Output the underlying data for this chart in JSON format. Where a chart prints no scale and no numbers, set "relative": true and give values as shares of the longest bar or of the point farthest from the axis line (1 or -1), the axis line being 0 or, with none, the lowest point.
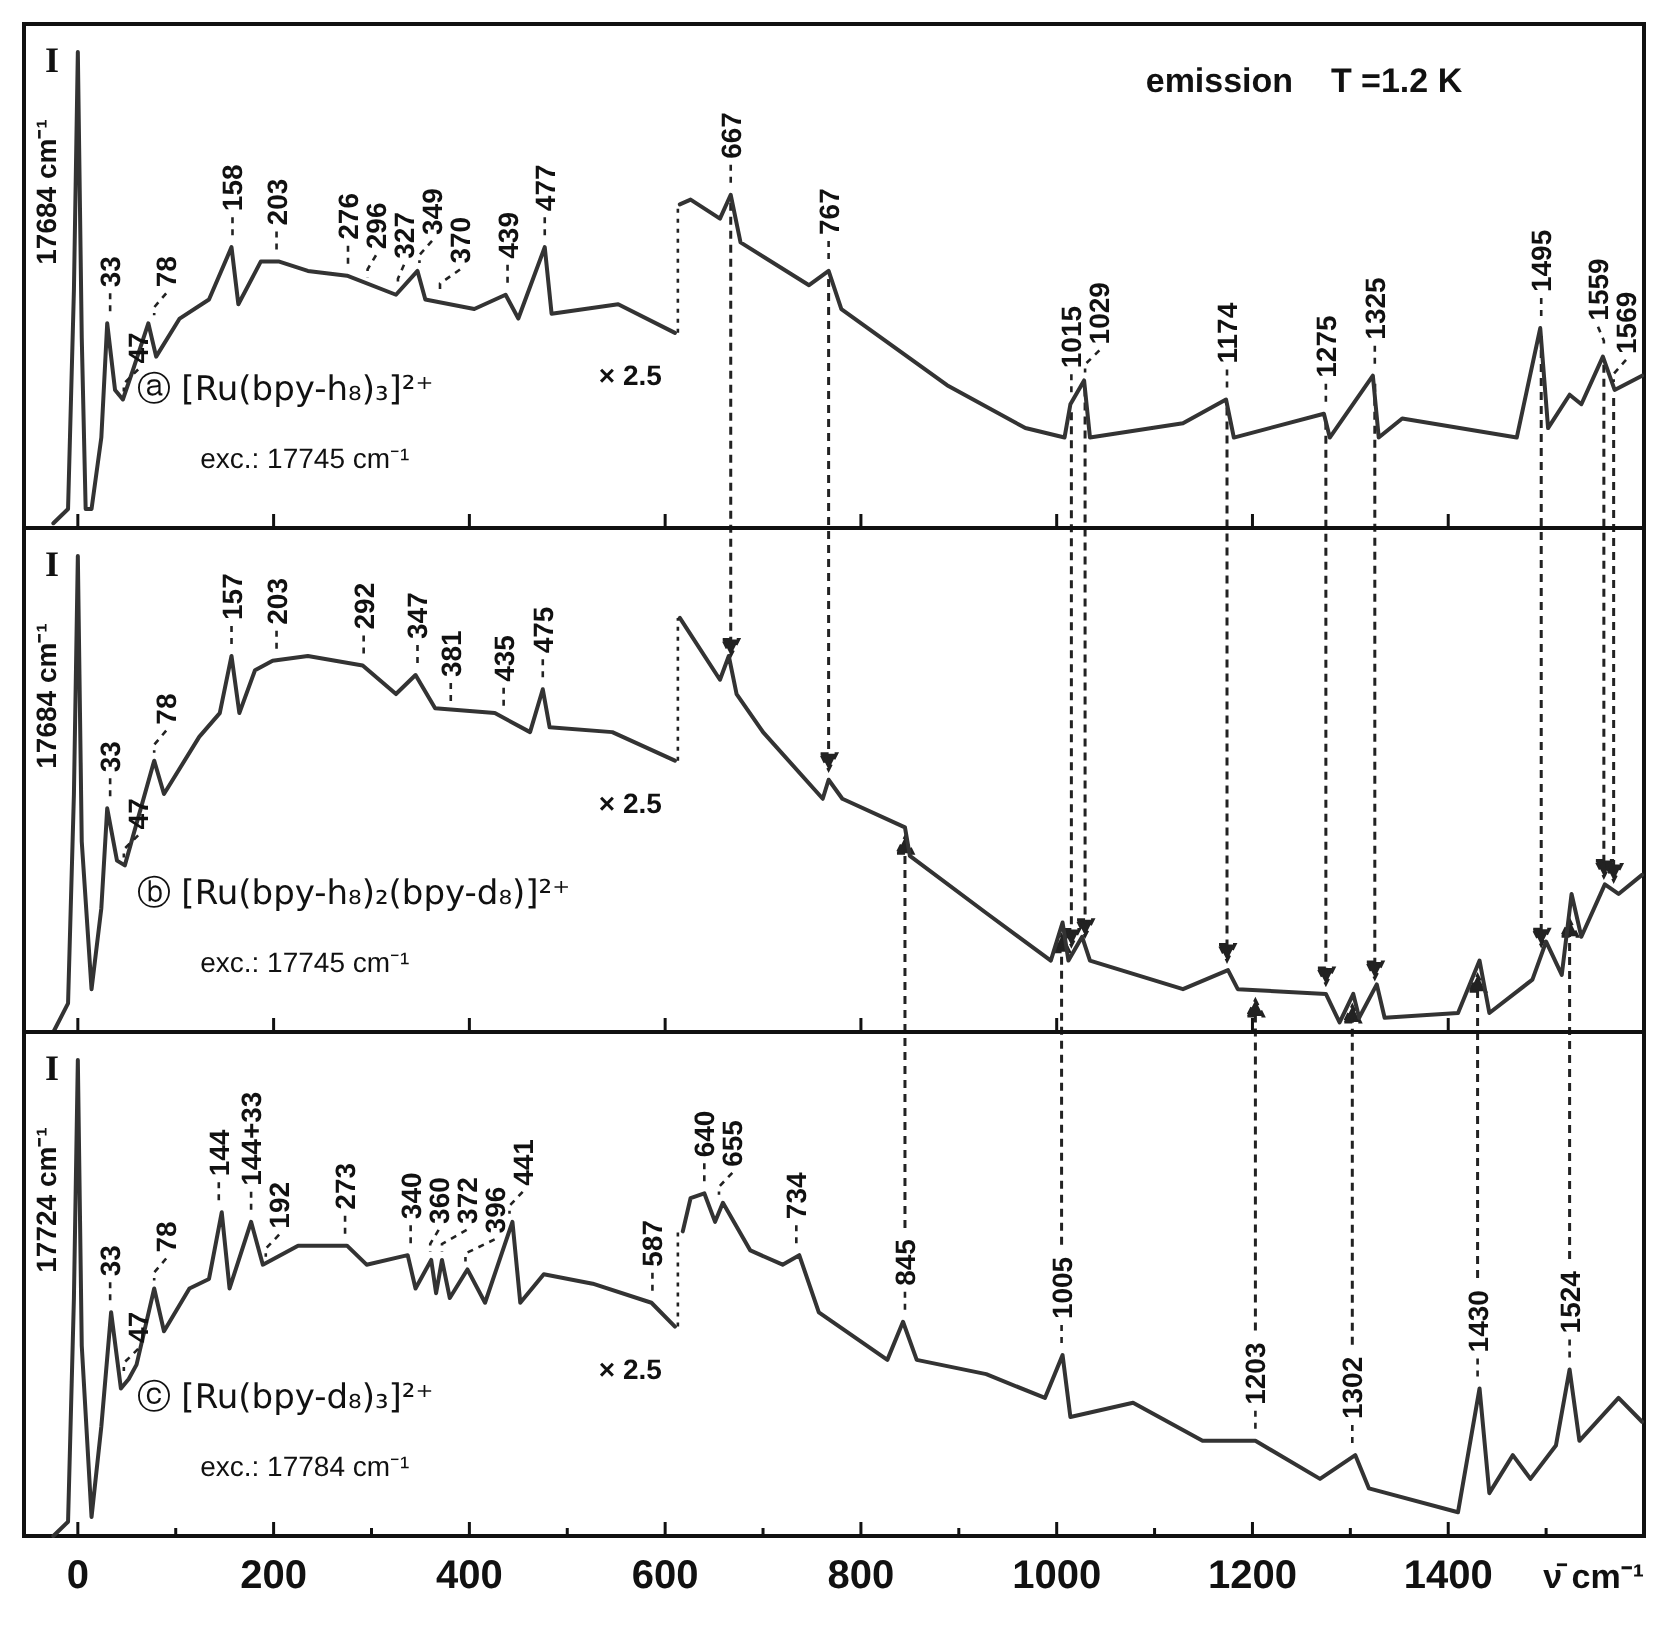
{
  "chart_data": [
    {
      "type": "line",
      "title": "emission    T =1.2 K",
      "subtitle": "ⓐ [Ru(bpy-h₈)₃]²⁺",
      "ylabel": "I",
      "relative": true,
      "tick_labels": false,
      "xlim": [
        -55,
        1600
      ],
      "xticks": [
        0,
        200,
        400,
        600,
        800,
        1000,
        1200,
        1400
      ],
      "series": [
        {
          "color": "#333333",
          "x": [
            -25,
            -10,
            -4,
            0,
            4,
            8,
            14,
            24,
            30,
            38,
            46,
            56,
            72,
            80,
            104,
            134,
            157,
            164,
            187,
            205,
            235,
            275,
            325,
            347,
            355,
            405,
            437,
            450,
            477,
            484,
            552,
            610,
            613,
            615,
            626,
            656,
            667,
            677,
            747,
            767,
            780,
            807,
            888,
            968,
            1008,
            1014,
            1028,
            1034,
            1129,
            1173,
            1181,
            1273,
            1279,
            1323,
            1329,
            1353,
            1470,
            1494,
            1502,
            1524,
            1536,
            1558,
            1570,
            1598
          ],
          "values": [
            0.01,
            0.04,
            0.5,
            1,
            0.4,
            0.04,
            0.04,
            0.19,
            0.43,
            0.29,
            0.27,
            0.33,
            0.43,
            0.36,
            0.44,
            0.48,
            0.59,
            0.47,
            0.56,
            0.56,
            0.54,
            0.53,
            0.49,
            0.54,
            0.48,
            0.46,
            0.49,
            0.44,
            0.59,
            0.45,
            0.47,
            0.41,
            null,
            0.68,
            0.69,
            0.65,
            0.7,
            0.6,
            0.51,
            0.54,
            0.46,
            0.42,
            0.3,
            0.21,
            0.19,
            0.26,
            0.31,
            0.19,
            0.22,
            0.27,
            0.19,
            0.24,
            0.19,
            0.32,
            0.19,
            0.23,
            0.19,
            0.42,
            0.21,
            0.28,
            0.26,
            0.36,
            0.29,
            0.32
          ]
        }
      ],
      "annotations": [
        "17684 cm⁻¹",
        "exc.: 17745 cm⁻¹",
        "× 2.5",
        {
          "text": "33",
          "x": 33,
          "y": 0.43
        },
        {
          "text": "47",
          "x": 47,
          "y": 0.27
        },
        {
          "text": "78",
          "x": 78,
          "y": 0.43
        },
        {
          "text": "158",
          "x": 158,
          "y": 0.59
        },
        {
          "text": "203",
          "x": 203,
          "y": 0.56
        },
        {
          "text": "276",
          "x": 276,
          "y": 0.53
        },
        {
          "text": "296",
          "x": 296,
          "y": 0.51
        },
        {
          "text": "327",
          "x": 327,
          "y": 0.49
        },
        {
          "text": "349",
          "x": 349,
          "y": 0.54
        },
        {
          "text": "370",
          "x": 370,
          "y": 0.48
        },
        {
          "text": "439",
          "x": 439,
          "y": 0.49
        },
        {
          "text": "477",
          "x": 477,
          "y": 0.59
        },
        {
          "text": "667",
          "x": 667,
          "y": 0.7
        },
        {
          "text": "767",
          "x": 767,
          "y": 0.54
        },
        {
          "text": "1015",
          "x": 1015,
          "y": 0.26
        },
        {
          "text": "1029",
          "x": 1029,
          "y": 0.31
        },
        {
          "text": "1174",
          "x": 1174,
          "y": 0.27
        },
        {
          "text": "1275",
          "x": 1275,
          "y": 0.24
        },
        {
          "text": "1325",
          "x": 1325,
          "y": 0.32
        },
        {
          "text": "1495",
          "x": 1495,
          "y": 0.42
        },
        {
          "text": "1559",
          "x": 1559,
          "y": 0.36
        },
        {
          "text": "1569",
          "x": 1569,
          "y": 0.29
        }
      ]
    },
    {
      "type": "line",
      "subtitle": "ⓑ [Ru(bpy-h₈)₂(bpy-d₈)]²⁺",
      "ylabel": "I",
      "relative": true,
      "tick_labels": false,
      "xlim": [
        -55,
        1600
      ],
      "xticks": [
        0,
        200,
        400,
        600,
        800,
        1000,
        1200,
        1400
      ],
      "series": [
        {
          "color": "#333333",
          "x": [
            -25,
            -10,
            -4,
            0,
            4,
            14,
            24,
            30,
            40,
            48,
            78,
            88,
            124,
            145,
            157,
            165,
            181,
            199,
            235,
            291,
            325,
            345,
            365,
            426,
            462,
            475,
            482,
            546,
            610,
            613,
            615,
            656,
            665,
            673,
            700,
            761,
            767,
            781,
            845,
            850,
            928,
            994,
            1006,
            1012,
            1026,
            1034,
            1129,
            1175,
            1185,
            1275,
            1289,
            1303,
            1309,
            1327,
            1335,
            1410,
            1432,
            1442,
            1486,
            1500,
            1516,
            1526,
            1536,
            1560,
            1574,
            1598
          ],
          "values": [
            0,
            0.06,
            0.5,
            1,
            0.4,
            0.09,
            0.26,
            0.47,
            0.36,
            0.35,
            0.57,
            0.5,
            0.62,
            0.67,
            0.79,
            0.67,
            0.76,
            0.78,
            0.79,
            0.77,
            0.71,
            0.75,
            0.68,
            0.67,
            0.63,
            0.72,
            0.64,
            0.63,
            0.57,
            null,
            0.87,
            0.74,
            0.79,
            0.71,
            0.63,
            0.49,
            0.53,
            0.49,
            0.43,
            0.37,
            0.25,
            0.15,
            0.23,
            0.15,
            0.2,
            0.15,
            0.09,
            0.13,
            0.09,
            0.08,
            0.02,
            0.08,
            0.03,
            0.1,
            0.03,
            0.04,
            0.15,
            0.04,
            0.11,
            0.19,
            0.12,
            0.29,
            0.2,
            0.31,
            0.29,
            0.33
          ]
        }
      ],
      "annotations": [
        "17684 cm⁻¹",
        "exc.: 17745 cm⁻¹",
        "× 2.5",
        {
          "text": "33",
          "x": 33,
          "y": 0.47
        },
        {
          "text": "47",
          "x": 47,
          "y": 0.35
        },
        {
          "text": "78",
          "x": 78,
          "y": 0.57
        },
        {
          "text": "157",
          "x": 157,
          "y": 0.79
        },
        {
          "text": "203",
          "x": 203,
          "y": 0.78
        },
        {
          "text": "292",
          "x": 292,
          "y": 0.77
        },
        {
          "text": "347",
          "x": 347,
          "y": 0.75
        },
        {
          "text": "381",
          "x": 381,
          "y": 0.67
        },
        {
          "text": "435",
          "x": 435,
          "y": 0.66
        },
        {
          "text": "475",
          "x": 475,
          "y": 0.72
        }
      ]
    },
    {
      "type": "line",
      "subtitle": "ⓒ [Ru(bpy-d₈)₃]²⁺",
      "ylabel": "I",
      "xlabel": "ν̄  cm⁻¹",
      "relative": true,
      "tick_labels": "x",
      "xlim": [
        -55,
        1600
      ],
      "xticks": [
        0,
        {
          "value": 100,
          "label": null
        },
        200,
        {
          "value": 300,
          "label": null
        },
        400,
        {
          "value": 500,
          "label": null
        },
        600,
        {
          "value": 700,
          "label": null
        },
        800,
        {
          "value": 900,
          "label": null
        },
        1000,
        {
          "value": 1100,
          "label": null
        },
        1200,
        {
          "value": 1300,
          "label": null
        },
        1400,
        {
          "value": 1500,
          "label": null
        }
      ],
      "series": [
        {
          "color": "#333333",
          "x": [
            -25,
            -10,
            -4,
            0,
            4,
            14,
            24,
            34,
            44,
            52,
            60,
            78,
            88,
            114,
            134,
            147,
            155,
            177,
            189,
            225,
            275,
            295,
            337,
            345,
            361,
            366,
            372,
            380,
            398,
            416,
            444,
            452,
            476,
            526,
            586,
            610,
            613,
            618,
            626,
            640,
            651,
            659,
            687,
            720,
            737,
            757,
            827,
            843,
            857,
            928,
            988,
            1006,
            1014,
            1078,
            1149,
            1203,
            1269,
            1305,
            1319,
            1410,
            1432,
            1442,
            1466,
            1484,
            1510,
            1524,
            1534,
            1574,
            1598
          ],
          "values": [
            0,
            0.03,
            0.5,
            1,
            0.4,
            0.04,
            0.23,
            0.47,
            0.31,
            0.33,
            0.36,
            0.52,
            0.43,
            0.52,
            0.54,
            0.68,
            0.52,
            0.66,
            0.57,
            0.61,
            0.61,
            0.57,
            0.59,
            0.52,
            0.58,
            0.51,
            0.58,
            0.5,
            0.56,
            0.49,
            0.66,
            0.49,
            0.55,
            0.53,
            0.49,
            0.44,
            null,
            0.64,
            0.71,
            0.72,
            0.66,
            0.7,
            0.6,
            0.57,
            0.59,
            0.47,
            0.37,
            0.45,
            0.37,
            0.34,
            0.29,
            0.38,
            0.25,
            0.28,
            0.2,
            0.2,
            0.12,
            0.17,
            0.1,
            0.05,
            0.31,
            0.09,
            0.17,
            0.12,
            0.19,
            0.35,
            0.2,
            0.29,
            0.24
          ]
        }
      ],
      "annotations": [
        "17724 cm⁻¹",
        "exc.: 17784 cm⁻¹",
        "× 2.5",
        {
          "text": "33",
          "x": 33,
          "y": 0.47
        },
        {
          "text": "47",
          "x": 47,
          "y": 0.33
        },
        {
          "text": "78",
          "x": 78,
          "y": 0.52
        },
        {
          "text": "144",
          "x": 144,
          "y": 0.68
        },
        {
          "text": "144+33",
          "x": 177,
          "y": 0.66
        },
        {
          "text": "192",
          "x": 192,
          "y": 0.57
        },
        {
          "text": "273",
          "x": 273,
          "y": 0.61
        },
        {
          "text": "340",
          "x": 340,
          "y": 0.59
        },
        {
          "text": "360",
          "x": 360,
          "y": 0.58
        },
        {
          "text": "372",
          "x": 372,
          "y": 0.58
        },
        {
          "text": "396",
          "x": 396,
          "y": 0.56
        },
        {
          "text": "441",
          "x": 441,
          "y": 0.66
        },
        {
          "text": "587",
          "x": 587,
          "y": 0.49
        },
        {
          "text": "640",
          "x": 640,
          "y": 0.72
        },
        {
          "text": "655",
          "x": 655,
          "y": 0.7
        },
        {
          "text": "734",
          "x": 734,
          "y": 0.59
        },
        {
          "text": "845",
          "x": 845,
          "y": 0.45
        },
        {
          "text": "1005",
          "x": 1005,
          "y": 0.38
        },
        {
          "text": "1203",
          "x": 1203,
          "y": 0.2
        },
        {
          "text": "1302",
          "x": 1302,
          "y": 0.17
        },
        {
          "text": "1430",
          "x": 1430,
          "y": 0.31
        },
        {
          "text": "1524",
          "x": 1524,
          "y": 0.35
        }
      ]
    }
  ]
}
